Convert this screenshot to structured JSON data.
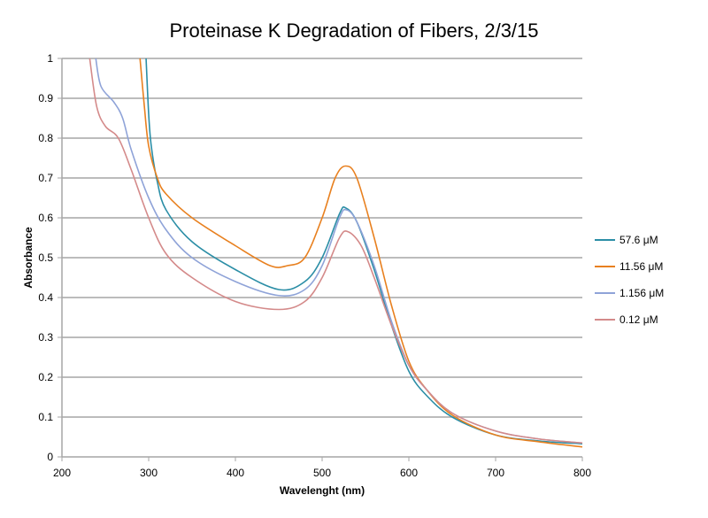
{
  "chart_data": {
    "type": "line",
    "title": "Proteinase K Degradation of Fibers, 2/3/15",
    "xlabel": "Wavelenght (nm)",
    "ylabel": "Absorbance",
    "xlim": [
      200,
      800
    ],
    "ylim": [
      0,
      1
    ],
    "xticks": [
      "200",
      "300",
      "400",
      "500",
      "600",
      "700",
      "800"
    ],
    "yticks": [
      "0",
      "0.1",
      "0.2",
      "0.3",
      "0.4",
      "0.5",
      "0.6",
      "0.7",
      "0.8",
      "0.9",
      "1"
    ],
    "grid": "horizontal",
    "legend_position": "right",
    "series": [
      {
        "name": "57.6 μM",
        "color": "#2b8ea6",
        "x": [
          297,
          300,
          303,
          310,
          320,
          350,
          400,
          450,
          480,
          500,
          520,
          527,
          540,
          560,
          580,
          600,
          620,
          650,
          700,
          750,
          800
        ],
        "y": [
          1.0,
          0.86,
          0.78,
          0.69,
          0.62,
          0.54,
          0.47,
          0.42,
          0.44,
          0.5,
          0.61,
          0.625,
          0.59,
          0.47,
          0.33,
          0.215,
          0.155,
          0.1,
          0.055,
          0.04,
          0.033
        ]
      },
      {
        "name": "11.56 μM",
        "color": "#e8801f",
        "x": [
          290,
          295,
          300,
          310,
          320,
          350,
          400,
          440,
          460,
          480,
          500,
          515,
          527,
          540,
          560,
          580,
          600,
          620,
          650,
          700,
          750,
          800
        ],
        "y": [
          1.0,
          0.88,
          0.78,
          0.7,
          0.66,
          0.6,
          0.53,
          0.48,
          0.48,
          0.5,
          0.6,
          0.7,
          0.73,
          0.7,
          0.55,
          0.38,
          0.24,
          0.17,
          0.105,
          0.055,
          0.038,
          0.025
        ]
      },
      {
        "name": "1.156 μM",
        "color": "#8fa3d8",
        "x": [
          239,
          245,
          260,
          270,
          280,
          300,
          320,
          350,
          400,
          450,
          480,
          500,
          520,
          528,
          540,
          560,
          580,
          600,
          620,
          650,
          700,
          750,
          800
        ],
        "y": [
          1.0,
          0.93,
          0.89,
          0.85,
          0.77,
          0.65,
          0.57,
          0.5,
          0.44,
          0.405,
          0.42,
          0.48,
          0.6,
          0.62,
          0.59,
          0.48,
          0.34,
          0.23,
          0.17,
          0.11,
          0.065,
          0.045,
          0.035
        ]
      },
      {
        "name": "0.12 μM",
        "color": "#d48a8a",
        "x": [
          232,
          240,
          250,
          265,
          280,
          300,
          320,
          350,
          400,
          450,
          480,
          500,
          520,
          530,
          545,
          560,
          580,
          600,
          620,
          650,
          700,
          750,
          800
        ],
        "y": [
          1.0,
          0.88,
          0.83,
          0.8,
          0.72,
          0.6,
          0.51,
          0.45,
          0.39,
          0.37,
          0.39,
          0.45,
          0.55,
          0.565,
          0.53,
          0.45,
          0.33,
          0.23,
          0.17,
          0.11,
          0.065,
          0.045,
          0.035
        ]
      }
    ]
  }
}
